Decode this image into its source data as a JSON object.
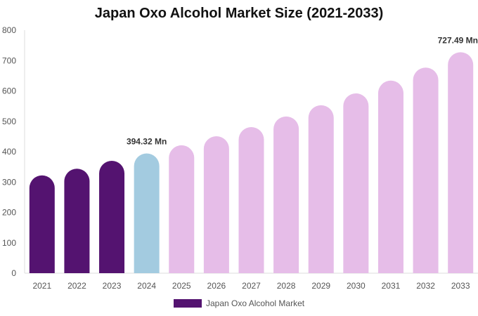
{
  "chart_data": {
    "type": "bar",
    "title": "Japan Oxo Alcohol Market Size (2021-2033)",
    "categories": [
      "2021",
      "2022",
      "2023",
      "2024",
      "2025",
      "2026",
      "2027",
      "2028",
      "2029",
      "2030",
      "2031",
      "2032",
      "2033"
    ],
    "series": [
      {
        "name": "Japan Oxo Alcohol Market",
        "values": [
          322,
          344,
          370,
          394.32,
          421,
          451,
          481,
          516,
          553,
          592,
          634,
          677,
          727.49
        ]
      }
    ],
    "data_labels": {
      "3": "394.32 Mn",
      "12": "727.49 Mn"
    },
    "ylim": [
      0,
      800
    ],
    "yticks": [
      0,
      100,
      200,
      300,
      400,
      500,
      600,
      700,
      800
    ],
    "grid": false,
    "legend": "bottom",
    "colors": {
      "historical": "#541370",
      "current": "#a3cbe0",
      "forecast": "#e6bde8"
    }
  }
}
